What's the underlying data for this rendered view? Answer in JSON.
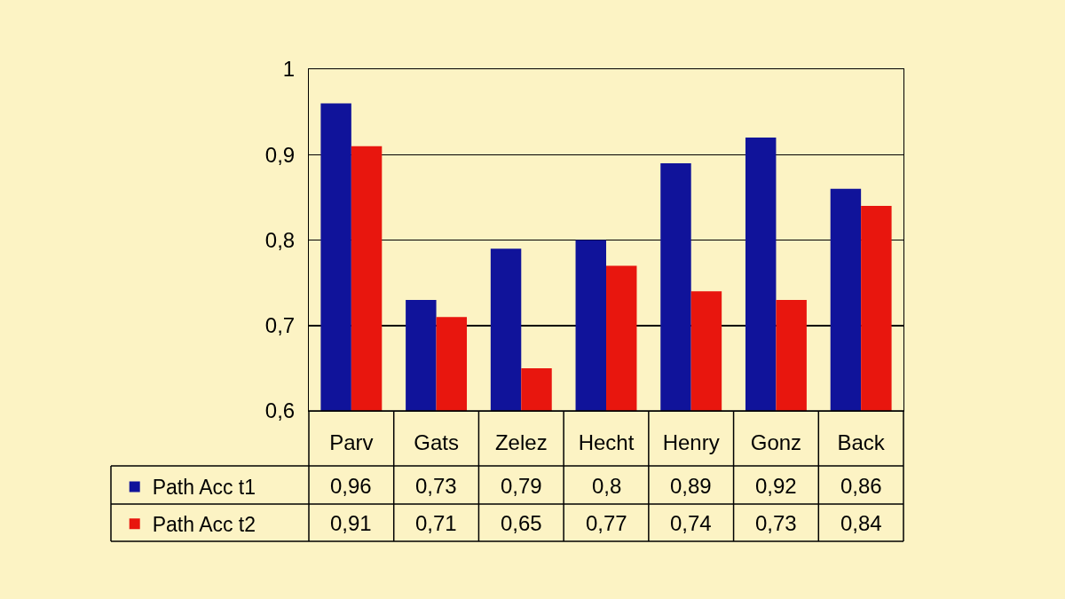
{
  "chart_data": {
    "type": "bar",
    "categories": [
      "Parv",
      "Gats",
      "Zelez",
      "Hecht",
      "Henry",
      "Gonz",
      "Back"
    ],
    "series": [
      {
        "name": "Path Acc t1",
        "color": "#10139a",
        "values": [
          0.96,
          0.73,
          0.79,
          0.8,
          0.89,
          0.92,
          0.86
        ],
        "value_labels": [
          "0,96",
          "0,73",
          "0,79",
          "0,8",
          "0,89",
          "0,92",
          "0,86"
        ]
      },
      {
        "name": "Path Acc t2",
        "color": "#e8160e",
        "values": [
          0.91,
          0.71,
          0.65,
          0.77,
          0.74,
          0.73,
          0.84
        ],
        "value_labels": [
          "0,91",
          "0,71",
          "0,65",
          "0,77",
          "0,74",
          "0,73",
          "0,84"
        ]
      }
    ],
    "ylim": [
      0.6,
      1
    ],
    "yticks": [
      {
        "value": 0.6,
        "label": "0,6"
      },
      {
        "value": 0.7,
        "label": "0,7"
      },
      {
        "value": 0.8,
        "label": "0,8"
      },
      {
        "value": 0.9,
        "label": "0,9"
      },
      1
    ],
    "grid": "y",
    "legend": "bottom left"
  }
}
